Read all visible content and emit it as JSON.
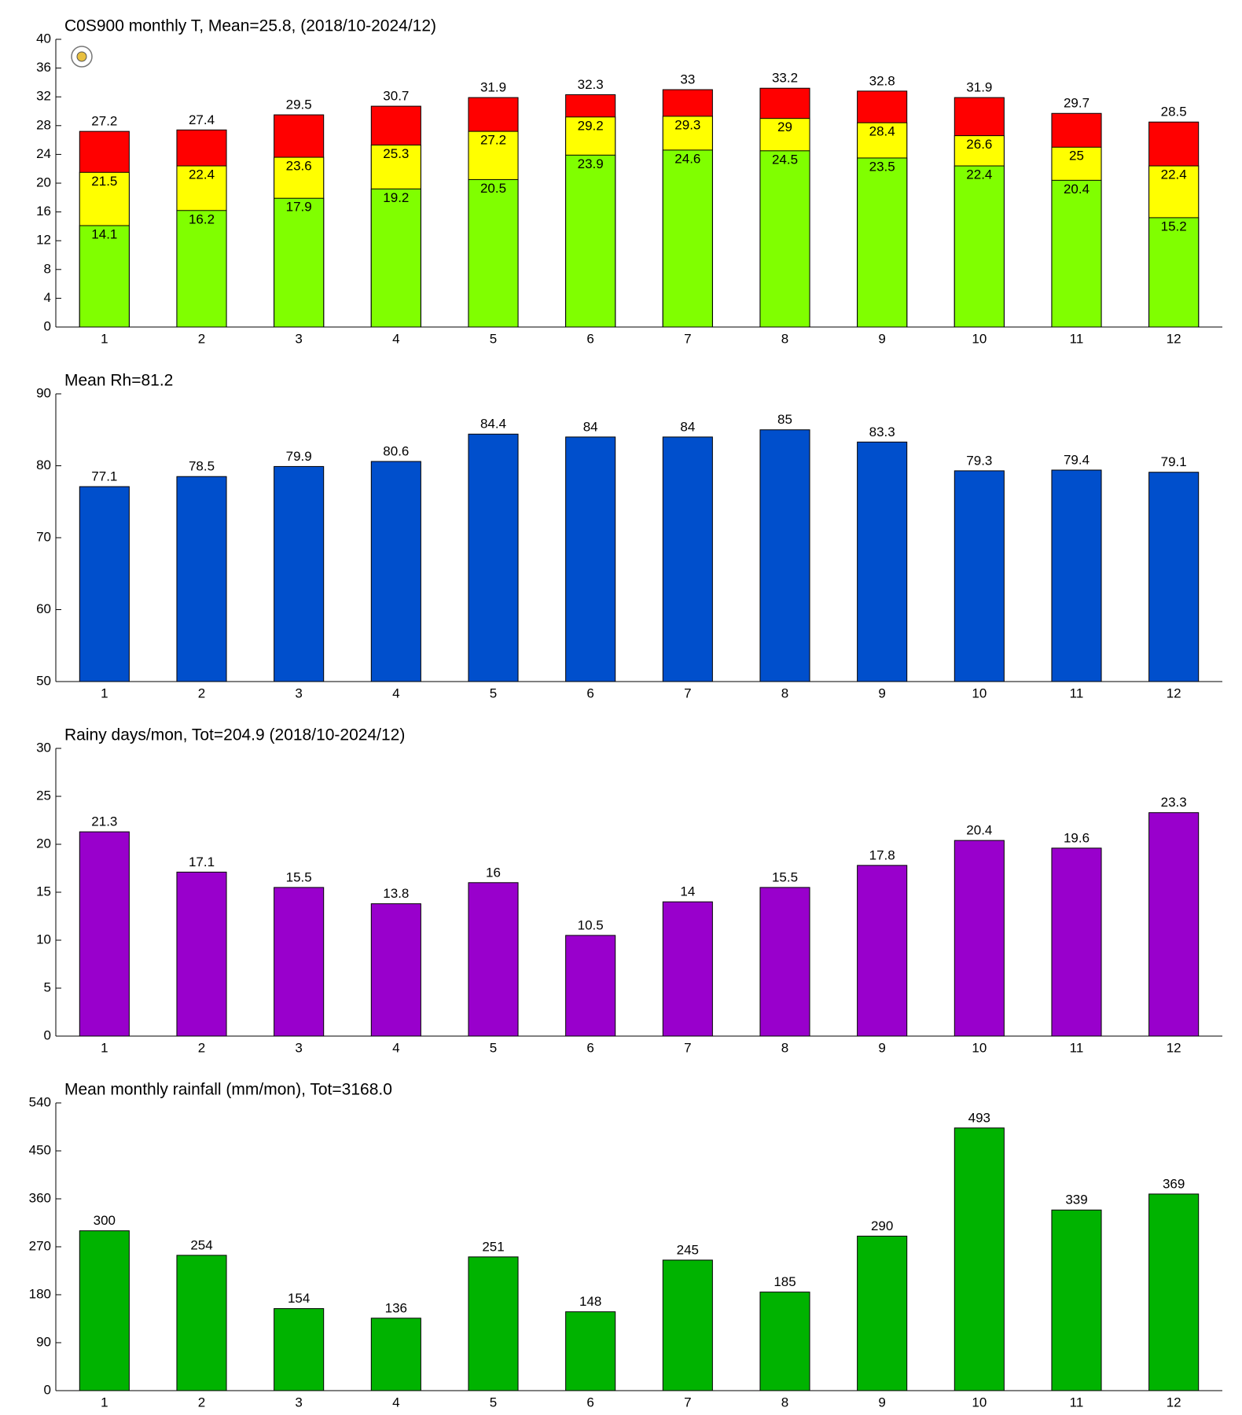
{
  "chart_data": [
    {
      "type": "bar",
      "title": "C0S900 monthly T, Mean=25.8, (2018/10-2024/12)",
      "categories": [
        "1",
        "2",
        "3",
        "4",
        "5",
        "6",
        "7",
        "8",
        "9",
        "10",
        "11",
        "12"
      ],
      "series": [
        {
          "color": "#ff0000",
          "values": [
            27.2,
            27.4,
            29.5,
            30.7,
            31.9,
            32.3,
            33,
            33.2,
            32.8,
            31.9,
            29.7,
            28.5
          ]
        },
        {
          "color": "#ffff00",
          "values": [
            21.5,
            22.4,
            23.6,
            25.3,
            27.2,
            29.2,
            29.3,
            29,
            28.4,
            26.6,
            25,
            22.4
          ]
        },
        {
          "color": "#80ff00",
          "values": [
            14.1,
            16.2,
            17.9,
            19.2,
            20.5,
            23.9,
            24.6,
            24.5,
            23.5,
            22.4,
            20.4,
            15.2
          ]
        }
      ],
      "ylim": [
        0,
        40
      ],
      "yticks": [
        0,
        4,
        8,
        12,
        16,
        20,
        24,
        28,
        32,
        36,
        40
      ]
    },
    {
      "type": "bar",
      "title": "Mean Rh=81.2",
      "categories": [
        "1",
        "2",
        "3",
        "4",
        "5",
        "6",
        "7",
        "8",
        "9",
        "10",
        "11",
        "12"
      ],
      "series": [
        {
          "color": "#004fcc",
          "values": [
            77.1,
            78.5,
            79.9,
            80.6,
            84.4,
            84,
            84,
            85,
            83.3,
            79.3,
            79.4,
            79.1
          ]
        }
      ],
      "ylim": [
        50,
        90
      ],
      "yticks": [
        50,
        60,
        70,
        80,
        90
      ]
    },
    {
      "type": "bar",
      "title": "Rainy days/mon, Tot=204.9 (2018/10-2024/12)",
      "categories": [
        "1",
        "2",
        "3",
        "4",
        "5",
        "6",
        "7",
        "8",
        "9",
        "10",
        "11",
        "12"
      ],
      "series": [
        {
          "color": "#9900cc",
          "values": [
            21.3,
            17.1,
            15.5,
            13.8,
            16,
            10.5,
            14,
            15.5,
            17.8,
            20.4,
            19.6,
            23.3
          ]
        }
      ],
      "ylim": [
        0,
        30
      ],
      "yticks": [
        0,
        5,
        10,
        15,
        20,
        25,
        30
      ]
    },
    {
      "type": "bar",
      "title": "Mean monthly rainfall (mm/mon), Tot=3168.0",
      "categories": [
        "1",
        "2",
        "3",
        "4",
        "5",
        "6",
        "7",
        "8",
        "9",
        "10",
        "11",
        "12"
      ],
      "series": [
        {
          "color": "#00b300",
          "values": [
            300,
            254,
            154,
            136,
            251,
            148,
            245,
            185,
            290,
            493,
            339,
            369
          ]
        }
      ],
      "ylim": [
        0,
        540
      ],
      "yticks": [
        0,
        90,
        180,
        270,
        360,
        450,
        540
      ]
    }
  ]
}
